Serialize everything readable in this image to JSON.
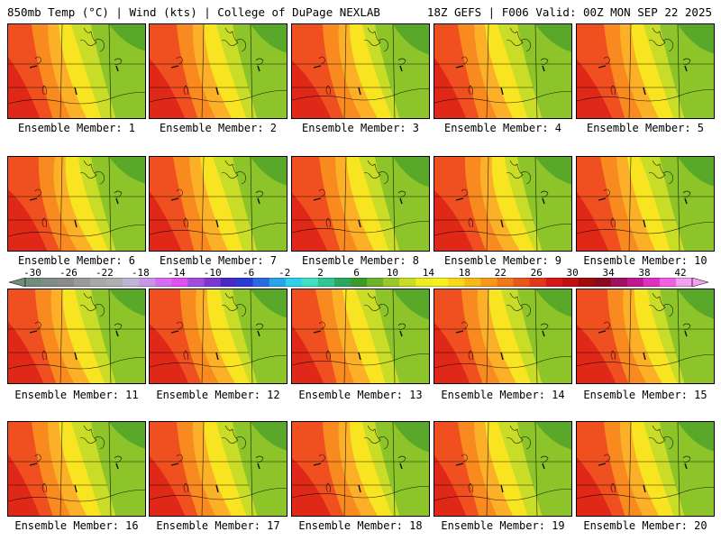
{
  "header": {
    "left": "850mb Temp (°C) | Wind (kts) | College of DuPage NEXLAB",
    "right": "18Z GEFS | F006 Valid: 00Z MON SEP 22 2025"
  },
  "panels": [
    {
      "label": "Ensemble Member: 1"
    },
    {
      "label": "Ensemble Member: 2"
    },
    {
      "label": "Ensemble Member: 3"
    },
    {
      "label": "Ensemble Member: 4"
    },
    {
      "label": "Ensemble Member: 5"
    },
    {
      "label": "Ensemble Member: 6"
    },
    {
      "label": "Ensemble Member: 7"
    },
    {
      "label": "Ensemble Member: 8"
    },
    {
      "label": "Ensemble Member: 9"
    },
    {
      "label": "Ensemble Member: 10"
    },
    {
      "label": "Ensemble Member: 11"
    },
    {
      "label": "Ensemble Member: 12"
    },
    {
      "label": "Ensemble Member: 13"
    },
    {
      "label": "Ensemble Member: 14"
    },
    {
      "label": "Ensemble Member: 15"
    },
    {
      "label": "Ensemble Member: 16"
    },
    {
      "label": "Ensemble Member: 17"
    },
    {
      "label": "Ensemble Member: 18"
    },
    {
      "label": "Ensemble Member: 19"
    },
    {
      "label": "Ensemble Member: 20"
    }
  ],
  "colorbar": {
    "labels": [
      "-30",
      "-26",
      "-22",
      "-18",
      "-14",
      "-10",
      "-6",
      "-2",
      "2",
      "6",
      "10",
      "14",
      "18",
      "22",
      "26",
      "30",
      "34",
      "38",
      "42"
    ],
    "colors": [
      "#6f8f7a",
      "#7d8c86",
      "#8a8a8a",
      "#9a9a9a",
      "#a8a8a8",
      "#b0b0b0",
      "#c0b4d8",
      "#c896e6",
      "#d86cf0",
      "#e050f0",
      "#a04cdc",
      "#7a38d0",
      "#4a28c8",
      "#2a3ad4",
      "#2a6ae0",
      "#2aa4e8",
      "#30d0e8",
      "#40e0c0",
      "#30c890",
      "#2aa860",
      "#3a9a2a",
      "#6ab42a",
      "#9ac82a",
      "#c8dc28",
      "#f0ec20",
      "#f8f020",
      "#f8d818",
      "#f8b818",
      "#f89818",
      "#f07818",
      "#e85818",
      "#e03818",
      "#d81818",
      "#c01010",
      "#a00c0c",
      "#8c0a20",
      "#a01060",
      "#c01890",
      "#e030c0",
      "#f060e0",
      "#f4a0f0"
    ],
    "accent": "#000000"
  },
  "map_colors": {
    "hot": "#e02818",
    "warm_red": "#f05020",
    "orange": "#f88a20",
    "light_orange": "#fbb028",
    "yellow": "#f8e420",
    "yellow_green": "#c8dc28",
    "green": "#8cc42a",
    "dark_green": "#5aa82a"
  }
}
